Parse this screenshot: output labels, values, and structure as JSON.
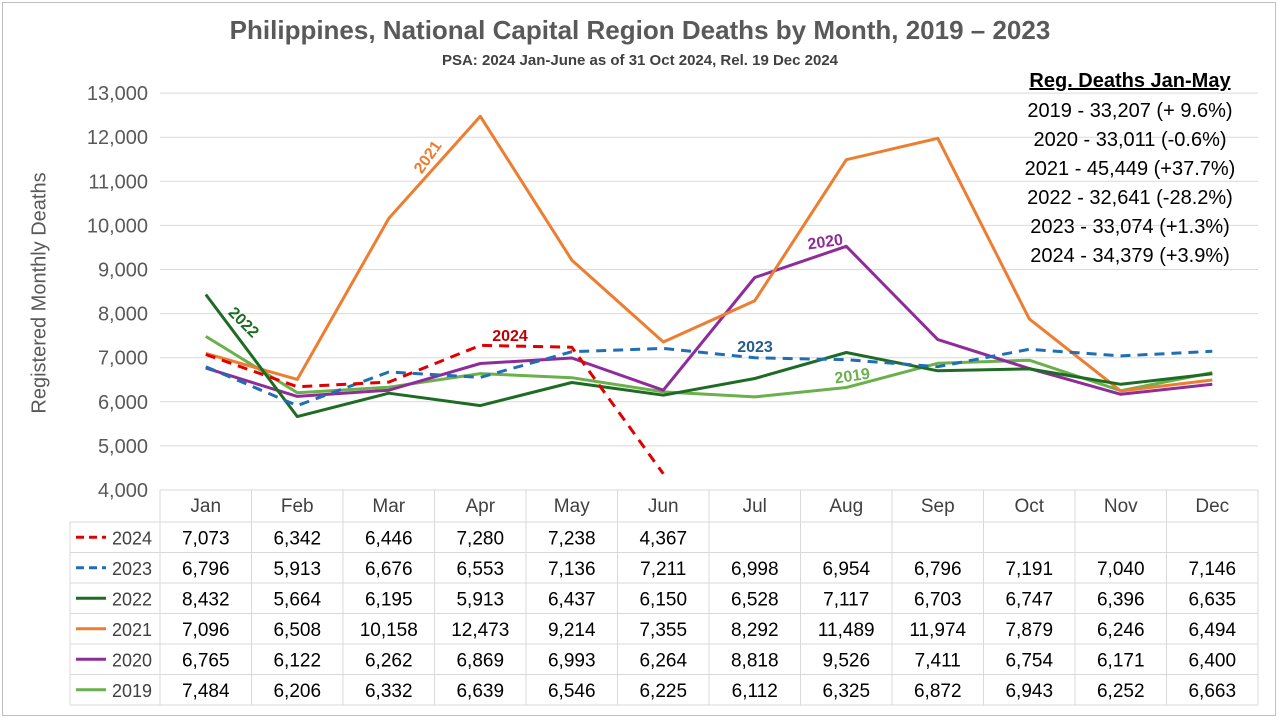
{
  "title": "Philippines, National Capital Region Deaths by Month, 2019 – 2023",
  "subtitle": "PSA: 2024 Jan-June as of 31 Oct 2024, Rel. 19 Dec 2024",
  "legend_box": {
    "heading": "Reg. Deaths Jan-May",
    "items": [
      "2019 - 33,207 (+ 9.6%)",
      "2020 - 33,011 (-0.6%)",
      "2021 - 45,449 (+37.7%)",
      "2022 - 32,641 (-28.2%)",
      "2023 - 33,074 (+1.3%)",
      "2024 - 34,379 (+3.9%)"
    ]
  },
  "chart_data": {
    "type": "line",
    "title": "Philippines, National Capital Region Deaths by Month, 2019 – 2023",
    "subtitle": "PSA: 2024 Jan-June as of 31 Oct 2024, Rel. 19 Dec 2024",
    "ylabel": "Registered Monthly Deaths",
    "xlabel": "",
    "ylim": [
      4000,
      13000
    ],
    "yticks": [
      "4,000",
      "5,000",
      "6,000",
      "7,000",
      "8,000",
      "9,000",
      "10,000",
      "11,000",
      "12,000",
      "13,000"
    ],
    "grid": true,
    "categories": [
      "Jan",
      "Feb",
      "Mar",
      "Apr",
      "May",
      "Jun",
      "Jul",
      "Aug",
      "Sep",
      "Oct",
      "Nov",
      "Dec"
    ],
    "legend": "data table below chart",
    "series": [
      {
        "name": "2024",
        "color": "#e00000",
        "dashed": true,
        "values": [
          7073,
          6342,
          6446,
          7280,
          7238,
          4367,
          null,
          null,
          null,
          null,
          null,
          null
        ],
        "labels": [
          "7,073",
          "6,342",
          "6,446",
          "7,280",
          "7,238",
          "4,367",
          "",
          "",
          "",
          "",
          "",
          ""
        ]
      },
      {
        "name": "2023",
        "color": "#1f6fb2",
        "dashed": true,
        "values": [
          6796,
          5913,
          6676,
          6553,
          7136,
          7211,
          6998,
          6954,
          6796,
          7191,
          7040,
          7146
        ],
        "labels": [
          "6,796",
          "5,913",
          "6,676",
          "6,553",
          "7,136",
          "7,211",
          "6,998",
          "6,954",
          "6,796",
          "7,191",
          "7,040",
          "7,146"
        ]
      },
      {
        "name": "2022",
        "color": "#1e6b23",
        "dashed": false,
        "values": [
          8432,
          5664,
          6195,
          5913,
          6437,
          6150,
          6528,
          7117,
          6703,
          6747,
          6396,
          6635
        ],
        "labels": [
          "8,432",
          "5,664",
          "6,195",
          "5,913",
          "6,437",
          "6,150",
          "6,528",
          "7,117",
          "6,703",
          "6,747",
          "6,396",
          "6,635"
        ]
      },
      {
        "name": "2021",
        "color": "#ed7d31",
        "dashed": false,
        "values": [
          7096,
          6508,
          10158,
          12473,
          9214,
          7355,
          8292,
          11489,
          11974,
          7879,
          6246,
          6494
        ],
        "labels": [
          "7,096",
          "6,508",
          "10,158",
          "12,473",
          "9,214",
          "7,355",
          "8,292",
          "11,489",
          "11,974",
          "7,879",
          "6,246",
          "6,494"
        ]
      },
      {
        "name": "2020",
        "color": "#8e2c9a",
        "dashed": false,
        "values": [
          6765,
          6122,
          6262,
          6869,
          6993,
          6264,
          8818,
          9526,
          7411,
          6754,
          6171,
          6400
        ],
        "labels": [
          "6,765",
          "6,122",
          "6,262",
          "6,869",
          "6,993",
          "6,264",
          "8,818",
          "9,526",
          "7,411",
          "6,754",
          "6,171",
          "6,400"
        ]
      },
      {
        "name": "2019",
        "color": "#6ab04c",
        "dashed": false,
        "values": [
          7484,
          6206,
          6332,
          6639,
          6546,
          6225,
          6112,
          6325,
          6872,
          6943,
          6252,
          6663
        ],
        "labels": [
          "7,484",
          "6,206",
          "6,332",
          "6,639",
          "6,546",
          "6,225",
          "6,112",
          "6,325",
          "6,872",
          "6,943",
          "6,252",
          "6,663"
        ]
      }
    ],
    "annotations": [
      {
        "text": "2021",
        "series": "2021",
        "color": "#ed7d31"
      },
      {
        "text": "2024",
        "series": "2024",
        "color": "#c00000"
      },
      {
        "text": "2023",
        "series": "2023",
        "color": "#1f5f8b"
      },
      {
        "text": "2020",
        "series": "2020",
        "color": "#8e2c9a"
      },
      {
        "text": "2019",
        "series": "2019",
        "color": "#6ab04c"
      },
      {
        "text": "2022",
        "series": "2022",
        "color": "#1e6b23"
      }
    ]
  }
}
